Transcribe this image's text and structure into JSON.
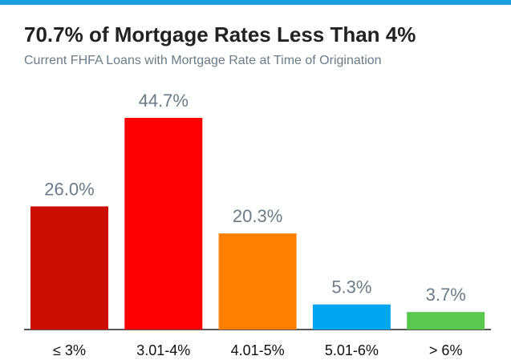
{
  "chart_data": {
    "type": "bar",
    "title": "70.7% of Mortgage Rates Less Than 4%",
    "subtitle": "Current FHFA Loans with Mortgage Rate at Time of Origination",
    "categories": [
      "≤ 3%",
      "3.01-4%",
      "4.01-5%",
      "5.01-6%",
      "> 6%"
    ],
    "values": [
      26.0,
      44.7,
      20.3,
      5.3,
      3.7
    ],
    "value_labels": [
      "26.0%",
      "44.7%",
      "20.3%",
      "5.3%",
      "3.7%"
    ],
    "colors": [
      "#cc0e00",
      "#ff0000",
      "#ff8000",
      "#00a6f0",
      "#5ac84e"
    ]
  }
}
